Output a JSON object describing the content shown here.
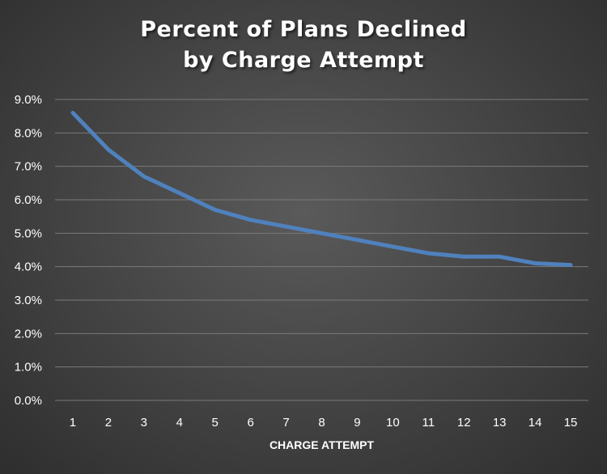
{
  "chart_data": {
    "type": "line",
    "title_lines": [
      "Percent of Plans Declined",
      "by Charge Attempt"
    ],
    "xlabel": "CHARGE ATTEMPT",
    "ylabel": "",
    "x": [
      1,
      2,
      3,
      4,
      5,
      6,
      7,
      8,
      9,
      10,
      11,
      12,
      13,
      14,
      15
    ],
    "series": [
      {
        "name": "",
        "color": "#4f81bd",
        "values": [
          8.6,
          7.5,
          6.7,
          6.2,
          5.7,
          5.4,
          5.2,
          5.0,
          4.8,
          4.6,
          4.4,
          4.3,
          4.3,
          4.1,
          4.05
        ]
      }
    ],
    "ylim": [
      0,
      9
    ],
    "y_ticks": [
      "0.0%",
      "1.0%",
      "2.0%",
      "3.0%",
      "4.0%",
      "5.0%",
      "6.0%",
      "7.0%",
      "8.0%",
      "9.0%"
    ],
    "y_tick_values": [
      0,
      1,
      2,
      3,
      4,
      5,
      6,
      7,
      8,
      9
    ],
    "grid": true,
    "legend": "none"
  }
}
